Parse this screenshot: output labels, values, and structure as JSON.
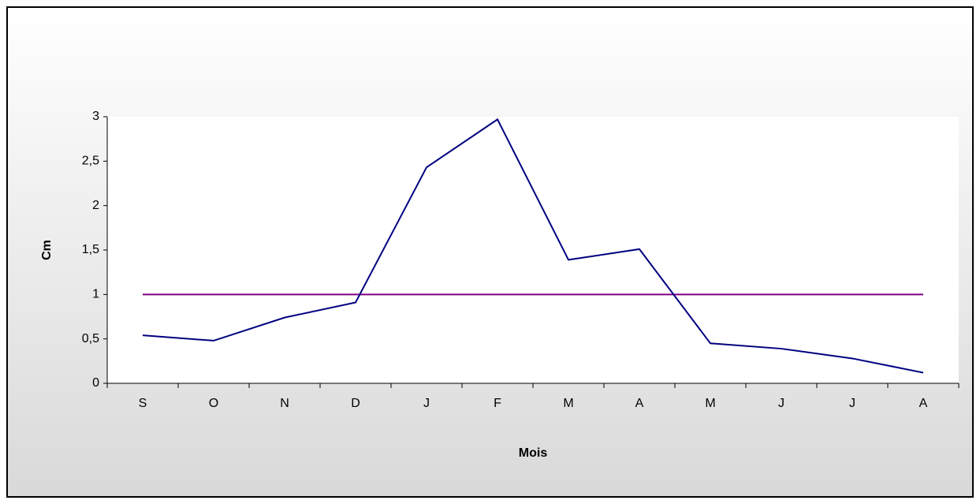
{
  "chart_data": {
    "type": "line",
    "xlabel": "Mois",
    "ylabel": "Cm",
    "categories": [
      "S",
      "O",
      "N",
      "D",
      "J",
      "F",
      "M",
      "A",
      "M",
      "J",
      "J",
      "A"
    ],
    "series": [
      {
        "color": "#000080",
        "values": [
          0.54,
          0.48,
          0.74,
          0.91,
          2.43,
          2.97,
          1.39,
          1.51,
          0.45,
          0.39,
          0.28,
          0.12
        ]
      },
      {
        "color": "#800080",
        "values": [
          1,
          1,
          1,
          1,
          1,
          1,
          1,
          1,
          1,
          1,
          1,
          1
        ]
      }
    ],
    "ylim": [
      0,
      3
    ],
    "yticks": [
      0,
      {
        "value": 0.5,
        "label": "0,5"
      },
      1,
      {
        "value": 1.5,
        "label": "1,5"
      },
      2,
      {
        "value": 2.5,
        "label": "2,5"
      },
      3
    ],
    "grid": false
  }
}
